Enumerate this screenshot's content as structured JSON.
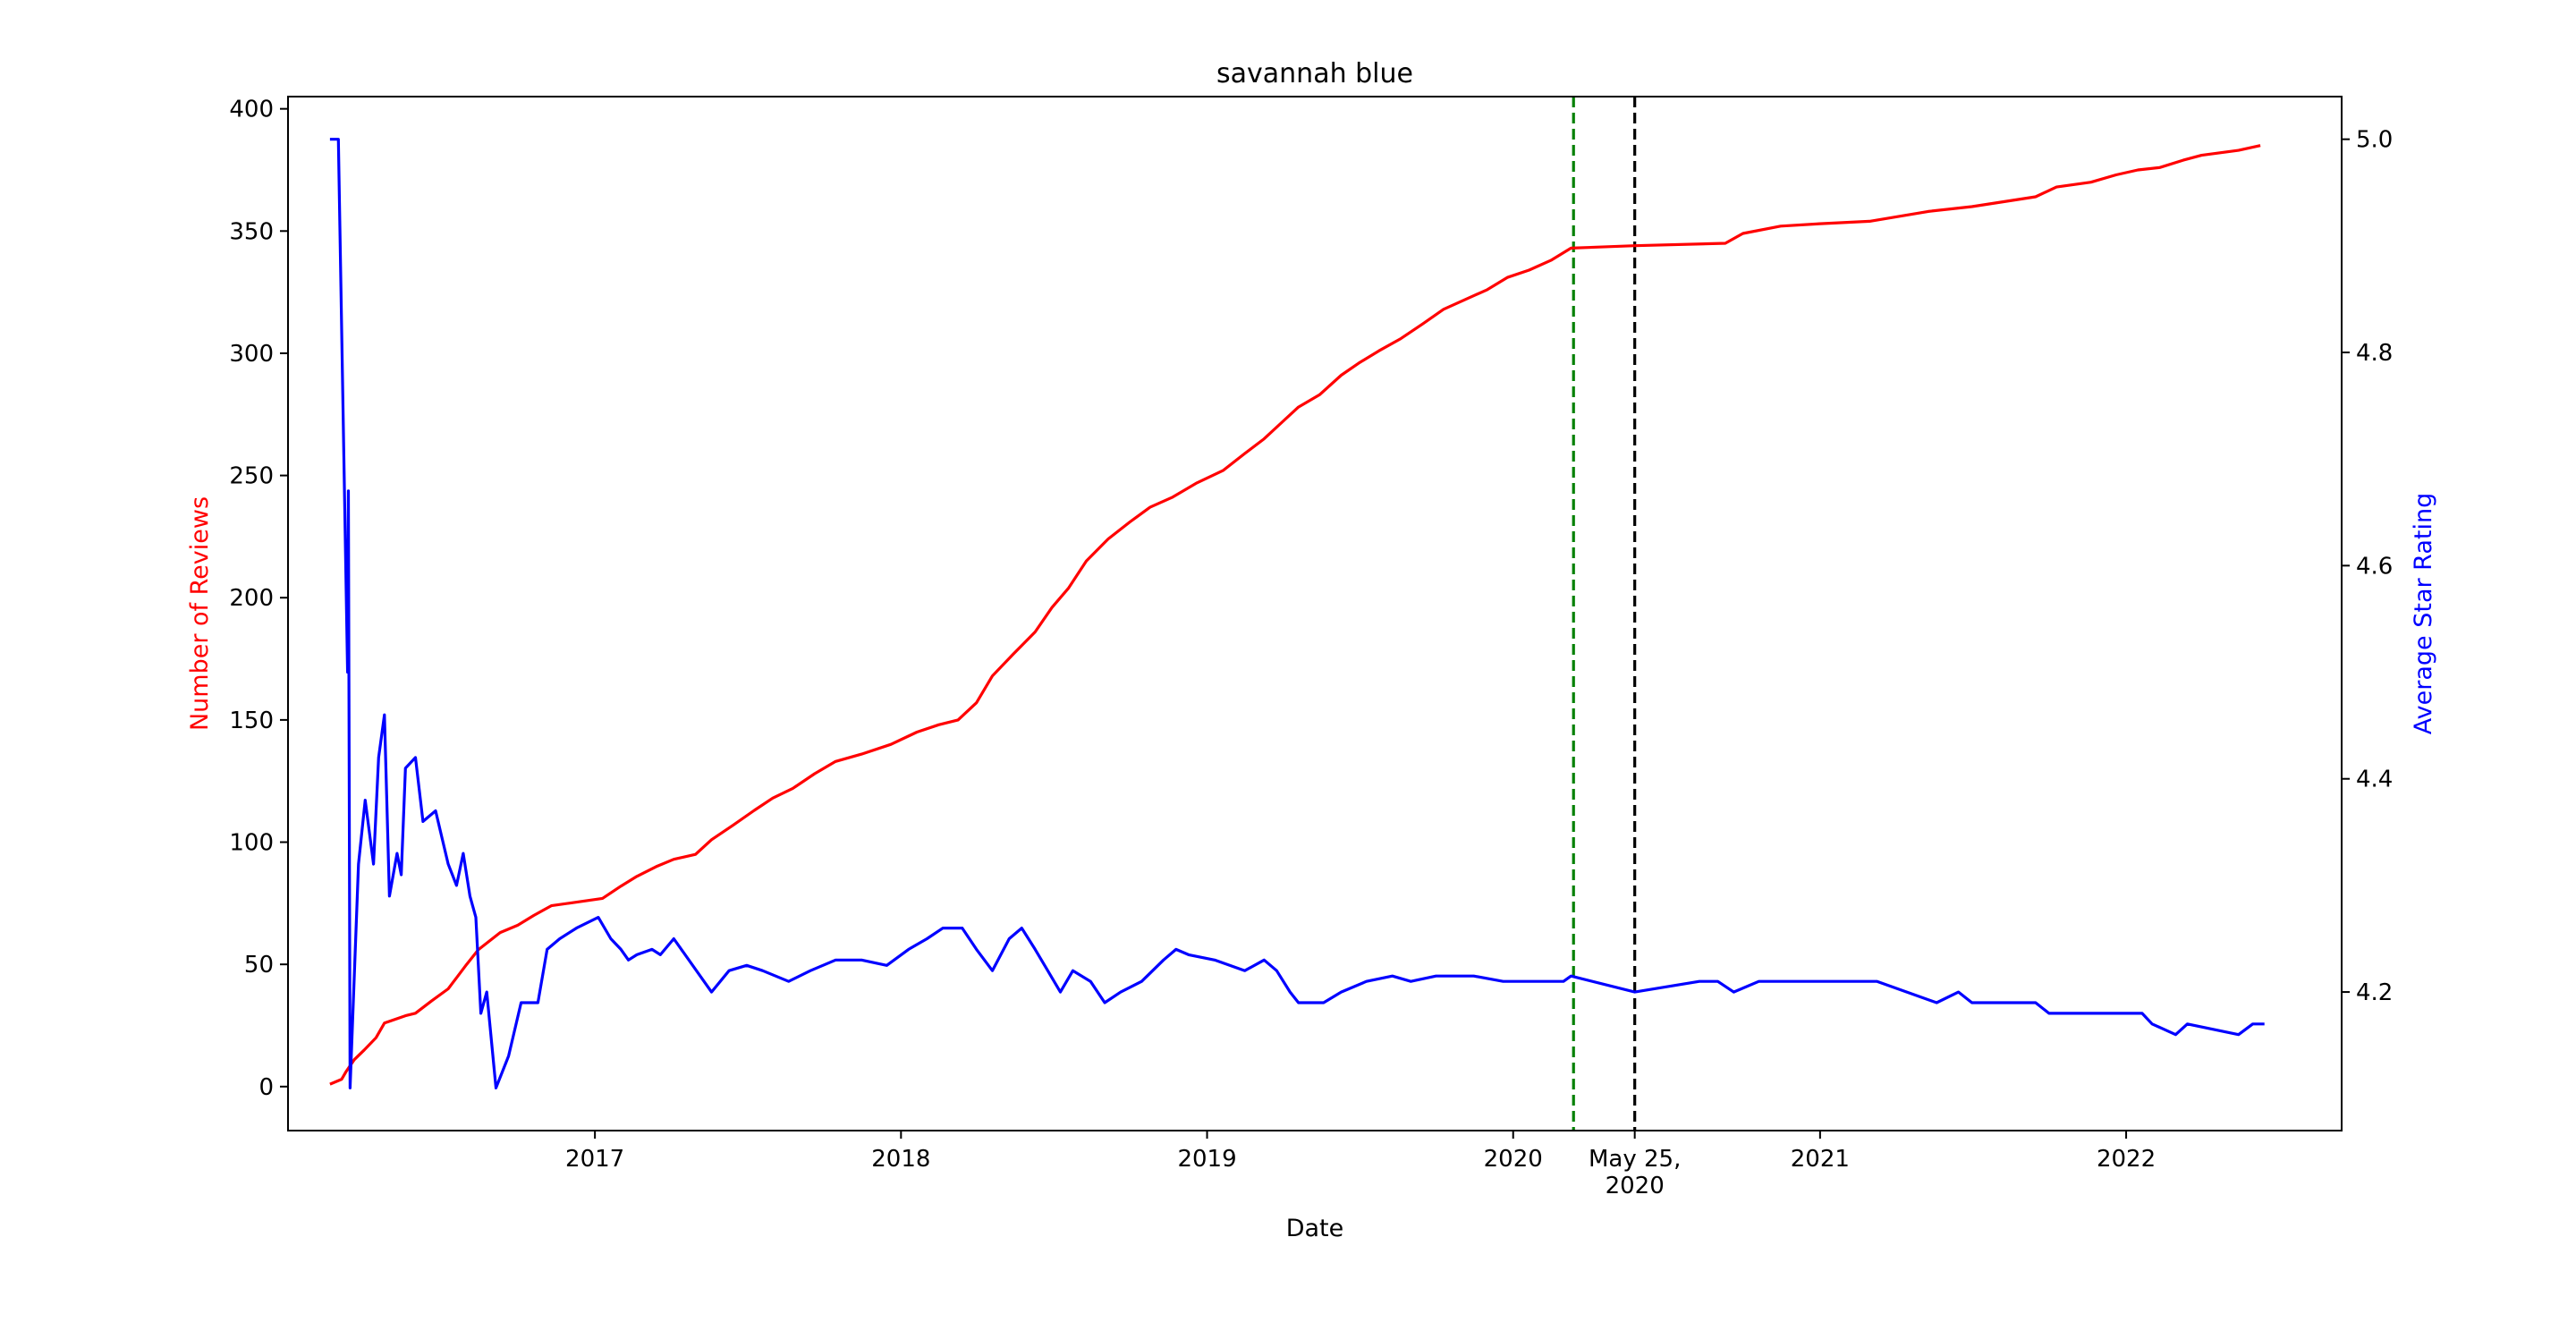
{
  "chart_data": {
    "type": "line",
    "title": "savannah blue",
    "xlabel": "Date",
    "ylabel_left": "Number of Reviews",
    "ylabel_right": "Average Star Rating",
    "xlim": [
      "2016-01-01",
      "2022-09-15"
    ],
    "ylim_left": [
      -18,
      405
    ],
    "ylim_right": [
      4.07,
      5.04
    ],
    "x_ticks": [
      {
        "date": "2017-01-01",
        "label": "2017"
      },
      {
        "date": "2018-01-01",
        "label": "2018"
      },
      {
        "date": "2019-01-01",
        "label": "2019"
      },
      {
        "date": "2020-01-01",
        "label": "2020"
      },
      {
        "date": "2020-05-25",
        "label": "May 25,",
        "label2": "2020"
      },
      {
        "date": "2021-01-01",
        "label": "2021"
      },
      {
        "date": "2022-01-01",
        "label": "2022"
      }
    ],
    "y_ticks_left": [
      0,
      50,
      100,
      150,
      200,
      250,
      300,
      350,
      400
    ],
    "y_ticks_right": [
      "4.2",
      "4.4",
      "4.6",
      "4.8",
      "5.0"
    ],
    "vlines": [
      {
        "date": "2020-03-13",
        "color": "#008000",
        "style": "dashed"
      },
      {
        "date": "2020-05-25",
        "color": "#000000",
        "style": "dashed"
      }
    ],
    "series": [
      {
        "axis": "left",
        "color": "#ff0000",
        "points": [
          [
            "2016-02-20",
            1
          ],
          [
            "2016-03-05",
            3
          ],
          [
            "2016-03-10",
            6
          ],
          [
            "2016-03-20",
            11
          ],
          [
            "2016-04-01",
            15
          ],
          [
            "2016-04-15",
            20
          ],
          [
            "2016-04-25",
            26
          ],
          [
            "2016-05-20",
            29
          ],
          [
            "2016-06-01",
            30
          ],
          [
            "2016-06-20",
            35
          ],
          [
            "2016-07-10",
            40
          ],
          [
            "2016-08-01",
            50
          ],
          [
            "2016-08-15",
            56
          ],
          [
            "2016-09-10",
            63
          ],
          [
            "2016-10-01",
            66
          ],
          [
            "2016-10-20",
            70
          ],
          [
            "2016-11-10",
            74
          ],
          [
            "2016-12-01",
            75
          ],
          [
            "2017-01-10",
            77
          ],
          [
            "2017-02-01",
            82
          ],
          [
            "2017-02-20",
            86
          ],
          [
            "2017-03-15",
            90
          ],
          [
            "2017-04-05",
            93
          ],
          [
            "2017-05-01",
            95
          ],
          [
            "2017-05-20",
            101
          ],
          [
            "2017-06-15",
            107
          ],
          [
            "2017-07-10",
            113
          ],
          [
            "2017-08-01",
            118
          ],
          [
            "2017-08-25",
            122
          ],
          [
            "2017-09-20",
            128
          ],
          [
            "2017-10-15",
            133
          ],
          [
            "2017-11-15",
            136
          ],
          [
            "2017-12-20",
            140
          ],
          [
            "2018-01-20",
            145
          ],
          [
            "2018-02-15",
            148
          ],
          [
            "2018-03-10",
            150
          ],
          [
            "2018-04-01",
            157
          ],
          [
            "2018-04-20",
            168
          ],
          [
            "2018-05-15",
            177
          ],
          [
            "2018-06-10",
            186
          ],
          [
            "2018-06-30",
            196
          ],
          [
            "2018-07-20",
            204
          ],
          [
            "2018-08-10",
            215
          ],
          [
            "2018-09-05",
            224
          ],
          [
            "2018-10-01",
            231
          ],
          [
            "2018-10-25",
            237
          ],
          [
            "2018-11-20",
            241
          ],
          [
            "2018-12-20",
            247
          ],
          [
            "2019-01-20",
            252
          ],
          [
            "2019-02-15",
            259
          ],
          [
            "2019-03-10",
            265
          ],
          [
            "2019-04-01",
            272
          ],
          [
            "2019-04-20",
            278
          ],
          [
            "2019-05-15",
            283
          ],
          [
            "2019-06-10",
            291
          ],
          [
            "2019-07-01",
            296
          ],
          [
            "2019-07-25",
            301
          ],
          [
            "2019-08-20",
            306
          ],
          [
            "2019-09-15",
            312
          ],
          [
            "2019-10-10",
            318
          ],
          [
            "2019-11-05",
            322
          ],
          [
            "2019-12-01",
            326
          ],
          [
            "2019-12-25",
            331
          ],
          [
            "2020-01-20",
            334
          ],
          [
            "2020-02-15",
            338
          ],
          [
            "2020-03-10",
            343
          ],
          [
            "2020-05-25",
            344
          ],
          [
            "2020-09-10",
            345
          ],
          [
            "2020-10-01",
            349
          ],
          [
            "2020-11-15",
            352
          ],
          [
            "2021-01-01",
            353
          ],
          [
            "2021-03-01",
            354
          ],
          [
            "2021-05-10",
            358
          ],
          [
            "2021-07-01",
            360
          ],
          [
            "2021-09-15",
            364
          ],
          [
            "2021-10-10",
            368
          ],
          [
            "2021-11-20",
            370
          ],
          [
            "2021-12-20",
            373
          ],
          [
            "2022-01-15",
            375
          ],
          [
            "2022-02-10",
            376
          ],
          [
            "2022-03-10",
            379
          ],
          [
            "2022-04-01",
            381
          ],
          [
            "2022-05-15",
            383
          ],
          [
            "2022-06-10",
            385
          ]
        ]
      },
      {
        "axis": "right",
        "color": "#0000ff",
        "points": [
          [
            "2016-02-20",
            5.0
          ],
          [
            "2016-03-01",
            5.0
          ],
          [
            "2016-03-12",
            4.5
          ],
          [
            "2016-03-13",
            4.67
          ],
          [
            "2016-03-15",
            4.11
          ],
          [
            "2016-03-25",
            4.32
          ],
          [
            "2016-04-02",
            4.38
          ],
          [
            "2016-04-12",
            4.32
          ],
          [
            "2016-04-18",
            4.42
          ],
          [
            "2016-04-25",
            4.46
          ],
          [
            "2016-05-01",
            4.29
          ],
          [
            "2016-05-10",
            4.33
          ],
          [
            "2016-05-15",
            4.31
          ],
          [
            "2016-05-20",
            4.41
          ],
          [
            "2016-06-01",
            4.42
          ],
          [
            "2016-06-10",
            4.36
          ],
          [
            "2016-06-25",
            4.37
          ],
          [
            "2016-07-10",
            4.32
          ],
          [
            "2016-07-20",
            4.3
          ],
          [
            "2016-07-28",
            4.33
          ],
          [
            "2016-08-05",
            4.29
          ],
          [
            "2016-08-12",
            4.27
          ],
          [
            "2016-08-18",
            4.18
          ],
          [
            "2016-08-25",
            4.2
          ],
          [
            "2016-09-05",
            4.11
          ],
          [
            "2016-09-20",
            4.14
          ],
          [
            "2016-10-05",
            4.19
          ],
          [
            "2016-10-25",
            4.19
          ],
          [
            "2016-11-05",
            4.24
          ],
          [
            "2016-11-20",
            4.25
          ],
          [
            "2016-12-10",
            4.26
          ],
          [
            "2017-01-05",
            4.27
          ],
          [
            "2017-01-20",
            4.25
          ],
          [
            "2017-02-01",
            4.24
          ],
          [
            "2017-02-10",
            4.23
          ],
          [
            "2017-02-20",
            4.235
          ],
          [
            "2017-03-10",
            4.24
          ],
          [
            "2017-03-20",
            4.235
          ],
          [
            "2017-04-05",
            4.25
          ],
          [
            "2017-05-20",
            4.2
          ],
          [
            "2017-06-10",
            4.22
          ],
          [
            "2017-07-01",
            4.225
          ],
          [
            "2017-07-20",
            4.22
          ],
          [
            "2017-08-20",
            4.21
          ],
          [
            "2017-09-15",
            4.22
          ],
          [
            "2017-10-15",
            4.23
          ],
          [
            "2017-11-15",
            4.23
          ],
          [
            "2017-12-15",
            4.225
          ],
          [
            "2018-01-10",
            4.24
          ],
          [
            "2018-02-01",
            4.25
          ],
          [
            "2018-02-20",
            4.26
          ],
          [
            "2018-03-15",
            4.26
          ],
          [
            "2018-04-01",
            4.24
          ],
          [
            "2018-04-20",
            4.22
          ],
          [
            "2018-05-10",
            4.25
          ],
          [
            "2018-05-25",
            4.26
          ],
          [
            "2018-06-10",
            4.24
          ],
          [
            "2018-06-25",
            4.22
          ],
          [
            "2018-07-10",
            4.2
          ],
          [
            "2018-07-25",
            4.22
          ],
          [
            "2018-08-15",
            4.21
          ],
          [
            "2018-09-01",
            4.19
          ],
          [
            "2018-09-20",
            4.2
          ],
          [
            "2018-10-15",
            4.21
          ],
          [
            "2018-11-10",
            4.23
          ],
          [
            "2018-11-25",
            4.24
          ],
          [
            "2018-12-10",
            4.235
          ],
          [
            "2019-01-10",
            4.23
          ],
          [
            "2019-02-15",
            4.22
          ],
          [
            "2019-03-10",
            4.23
          ],
          [
            "2019-03-25",
            4.22
          ],
          [
            "2019-04-10",
            4.2
          ],
          [
            "2019-04-20",
            4.19
          ],
          [
            "2019-05-20",
            4.19
          ],
          [
            "2019-06-10",
            4.2
          ],
          [
            "2019-07-10",
            4.21
          ],
          [
            "2019-08-10",
            4.215
          ],
          [
            "2019-09-01",
            4.21
          ],
          [
            "2019-10-01",
            4.215
          ],
          [
            "2019-11-15",
            4.215
          ],
          [
            "2019-12-20",
            4.21
          ],
          [
            "2020-01-20",
            4.21
          ],
          [
            "2020-03-01",
            4.21
          ],
          [
            "2020-03-10",
            4.215
          ],
          [
            "2020-05-25",
            4.2
          ],
          [
            "2020-08-10",
            4.21
          ],
          [
            "2020-09-01",
            4.21
          ],
          [
            "2020-09-20",
            4.2
          ],
          [
            "2020-10-20",
            4.21
          ],
          [
            "2021-01-01",
            4.21
          ],
          [
            "2021-03-10",
            4.21
          ],
          [
            "2021-05-20",
            4.19
          ],
          [
            "2021-06-15",
            4.2
          ],
          [
            "2021-07-01",
            4.19
          ],
          [
            "2021-09-15",
            4.19
          ],
          [
            "2021-10-01",
            4.18
          ],
          [
            "2022-01-20",
            4.18
          ],
          [
            "2022-02-01",
            4.17
          ],
          [
            "2022-03-01",
            4.16
          ],
          [
            "2022-03-15",
            4.17
          ],
          [
            "2022-05-15",
            4.16
          ],
          [
            "2022-06-01",
            4.17
          ],
          [
            "2022-06-15",
            4.17
          ]
        ]
      }
    ]
  }
}
